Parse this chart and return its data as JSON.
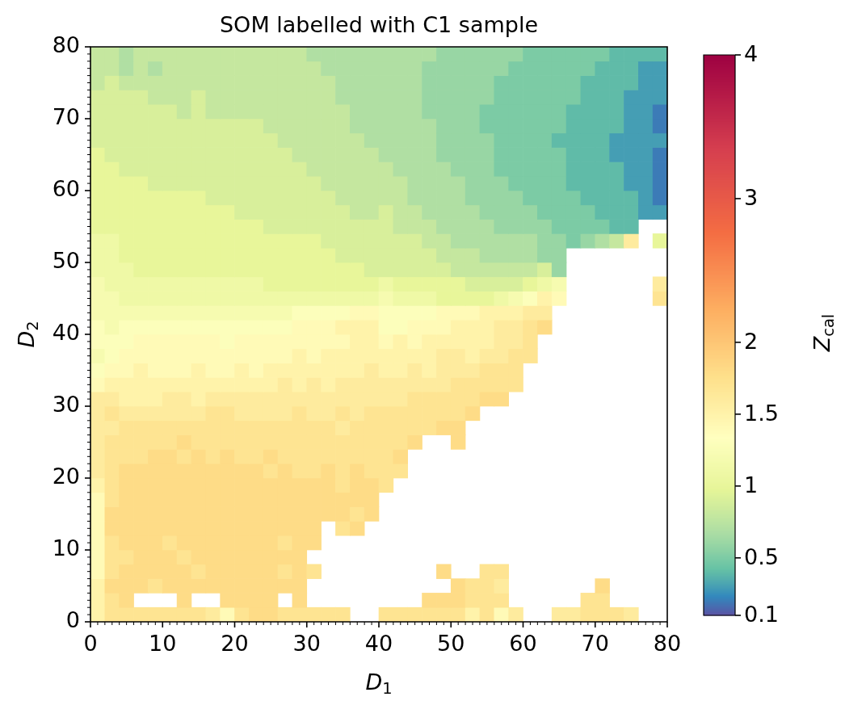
{
  "chart_data": {
    "type": "heatmap",
    "title": "SOM labelled with C1 sample",
    "xlabel": "D$_{1}$",
    "ylabel": "D$_{2}$",
    "clabel": "Z$_{cal}$",
    "xlim": [
      0,
      80
    ],
    "ylim": [
      0,
      80
    ],
    "xticks": [
      0,
      {
        "value": 1,
        "label": null
      },
      {
        "value": 2,
        "label": null
      },
      {
        "value": 3,
        "label": null
      },
      {
        "value": 4,
        "label": null
      },
      {
        "value": 5,
        "label": null
      },
      {
        "value": 6,
        "label": null
      },
      {
        "value": 7,
        "label": null
      },
      {
        "value": 8,
        "label": null
      },
      {
        "value": 9,
        "label": null
      },
      10,
      {
        "value": 11,
        "label": null
      },
      {
        "value": 12,
        "label": null
      },
      {
        "value": 13,
        "label": null
      },
      {
        "value": 14,
        "label": null
      },
      {
        "value": 15,
        "label": null
      },
      {
        "value": 16,
        "label": null
      },
      {
        "value": 17,
        "label": null
      },
      {
        "value": 18,
        "label": null
      },
      {
        "value": 19,
        "label": null
      },
      20,
      {
        "value": 21,
        "label": null
      },
      {
        "value": 22,
        "label": null
      },
      {
        "value": 23,
        "label": null
      },
      {
        "value": 24,
        "label": null
      },
      {
        "value": 25,
        "label": null
      },
      {
        "value": 26,
        "label": null
      },
      {
        "value": 27,
        "label": null
      },
      {
        "value": 28,
        "label": null
      },
      {
        "value": 29,
        "label": null
      },
      30,
      {
        "value": 31,
        "label": null
      },
      {
        "value": 32,
        "label": null
      },
      {
        "value": 33,
        "label": null
      },
      {
        "value": 34,
        "label": null
      },
      {
        "value": 35,
        "label": null
      },
      {
        "value": 36,
        "label": null
      },
      {
        "value": 37,
        "label": null
      },
      {
        "value": 38,
        "label": null
      },
      {
        "value": 39,
        "label": null
      },
      40,
      {
        "value": 41,
        "label": null
      },
      {
        "value": 42,
        "label": null
      },
      {
        "value": 43,
        "label": null
      },
      {
        "value": 44,
        "label": null
      },
      {
        "value": 45,
        "label": null
      },
      {
        "value": 46,
        "label": null
      },
      {
        "value": 47,
        "label": null
      },
      {
        "value": 48,
        "label": null
      },
      {
        "value": 49,
        "label": null
      },
      50,
      {
        "value": 51,
        "label": null
      },
      {
        "value": 52,
        "label": null
      },
      {
        "value": 53,
        "label": null
      },
      {
        "value": 54,
        "label": null
      },
      {
        "value": 55,
        "label": null
      },
      {
        "value": 56,
        "label": null
      },
      {
        "value": 57,
        "label": null
      },
      {
        "value": 58,
        "label": null
      },
      {
        "value": 59,
        "label": null
      },
      60,
      {
        "value": 61,
        "label": null
      },
      {
        "value": 62,
        "label": null
      },
      {
        "value": 63,
        "label": null
      },
      {
        "value": 64,
        "label": null
      },
      {
        "value": 65,
        "label": null
      },
      {
        "value": 66,
        "label": null
      },
      {
        "value": 67,
        "label": null
      },
      {
        "value": 68,
        "label": null
      },
      {
        "value": 69,
        "label": null
      },
      70,
      {
        "value": 71,
        "label": null
      },
      {
        "value": 72,
        "label": null
      },
      {
        "value": 73,
        "label": null
      },
      {
        "value": 74,
        "label": null
      },
      {
        "value": 75,
        "label": null
      },
      {
        "value": 76,
        "label": null
      },
      {
        "value": 77,
        "label": null
      },
      {
        "value": 78,
        "label": null
      },
      {
        "value": 79,
        "label": null
      },
      80
    ],
    "yticks": [
      0,
      {
        "value": 1,
        "label": null
      },
      {
        "value": 2,
        "label": null
      },
      {
        "value": 3,
        "label": null
      },
      {
        "value": 4,
        "label": null
      },
      {
        "value": 5,
        "label": null
      },
      {
        "value": 6,
        "label": null
      },
      {
        "value": 7,
        "label": null
      },
      {
        "value": 8,
        "label": null
      },
      {
        "value": 9,
        "label": null
      },
      10,
      {
        "value": 11,
        "label": null
      },
      {
        "value": 12,
        "label": null
      },
      {
        "value": 13,
        "label": null
      },
      {
        "value": 14,
        "label": null
      },
      {
        "value": 15,
        "label": null
      },
      {
        "value": 16,
        "label": null
      },
      {
        "value": 17,
        "label": null
      },
      {
        "value": 18,
        "label": null
      },
      {
        "value": 19,
        "label": null
      },
      20,
      {
        "value": 21,
        "label": null
      },
      {
        "value": 22,
        "label": null
      },
      {
        "value": 23,
        "label": null
      },
      {
        "value": 24,
        "label": null
      },
      {
        "value": 25,
        "label": null
      },
      {
        "value": 26,
        "label": null
      },
      {
        "value": 27,
        "label": null
      },
      {
        "value": 28,
        "label": null
      },
      {
        "value": 29,
        "label": null
      },
      30,
      {
        "value": 31,
        "label": null
      },
      {
        "value": 32,
        "label": null
      },
      {
        "value": 33,
        "label": null
      },
      {
        "value": 34,
        "label": null
      },
      {
        "value": 35,
        "label": null
      },
      {
        "value": 36,
        "label": null
      },
      {
        "value": 37,
        "label": null
      },
      {
        "value": 38,
        "label": null
      },
      {
        "value": 39,
        "label": null
      },
      40,
      {
        "value": 41,
        "label": null
      },
      {
        "value": 42,
        "label": null
      },
      {
        "value": 43,
        "label": null
      },
      {
        "value": 44,
        "label": null
      },
      {
        "value": 45,
        "label": null
      },
      {
        "value": 46,
        "label": null
      },
      {
        "value": 47,
        "label": null
      },
      {
        "value": 48,
        "label": null
      },
      {
        "value": 49,
        "label": null
      },
      50,
      {
        "value": 51,
        "label": null
      },
      {
        "value": 52,
        "label": null
      },
      {
        "value": 53,
        "label": null
      },
      {
        "value": 54,
        "label": null
      },
      {
        "value": 55,
        "label": null
      },
      {
        "value": 56,
        "label": null
      },
      {
        "value": 57,
        "label": null
      },
      {
        "value": 58,
        "label": null
      },
      {
        "value": 59,
        "label": null
      },
      60,
      {
        "value": 61,
        "label": null
      },
      {
        "value": 62,
        "label": null
      },
      {
        "value": 63,
        "label": null
      },
      {
        "value": 64,
        "label": null
      },
      {
        "value": 65,
        "label": null
      },
      {
        "value": 66,
        "label": null
      },
      {
        "value": 67,
        "label": null
      },
      {
        "value": 68,
        "label": null
      },
      {
        "value": 69,
        "label": null
      },
      70,
      {
        "value": 71,
        "label": null
      },
      {
        "value": 72,
        "label": null
      },
      {
        "value": 73,
        "label": null
      },
      {
        "value": 74,
        "label": null
      },
      {
        "value": 75,
        "label": null
      },
      {
        "value": 76,
        "label": null
      },
      {
        "value": 77,
        "label": null
      },
      {
        "value": 78,
        "label": null
      },
      {
        "value": 79,
        "label": null
      },
      80
    ],
    "clim": [
      0.1,
      4
    ],
    "cticks": [
      0.1,
      0.5,
      1,
      1.5,
      2,
      3,
      4
    ],
    "cells": [
      [
        0.8,
        0.8,
        0.7,
        0.8,
        0.8,
        0.8,
        0.8,
        0.8,
        0.8,
        0.8,
        0.8,
        0.8,
        0.8,
        0.8,
        0.8,
        0.7,
        0.7,
        0.7,
        0.7,
        0.7,
        0.7,
        0.7,
        0.7,
        0.7,
        0.6,
        0.6,
        0.6,
        0.6,
        0.6,
        0.6,
        0.5,
        0.5,
        0.5,
        0.5,
        0.5,
        0.5,
        0.4,
        0.4,
        0.4,
        0.4
      ],
      [
        0.8,
        0.8,
        0.7,
        0.8,
        0.7,
        0.8,
        0.8,
        0.8,
        0.8,
        0.8,
        0.8,
        0.8,
        0.8,
        0.8,
        0.8,
        0.8,
        0.7,
        0.7,
        0.7,
        0.7,
        0.7,
        0.7,
        0.7,
        0.6,
        0.6,
        0.6,
        0.6,
        0.6,
        0.6,
        0.5,
        0.5,
        0.5,
        0.5,
        0.5,
        0.5,
        0.4,
        0.4,
        0.4,
        0.3,
        0.3
      ],
      [
        0.8,
        0.9,
        0.8,
        0.8,
        0.8,
        0.8,
        0.8,
        0.8,
        0.8,
        0.8,
        0.8,
        0.8,
        0.8,
        0.8,
        0.8,
        0.8,
        0.8,
        0.7,
        0.7,
        0.7,
        0.7,
        0.7,
        0.7,
        0.6,
        0.6,
        0.6,
        0.6,
        0.6,
        0.5,
        0.5,
        0.5,
        0.5,
        0.5,
        0.5,
        0.4,
        0.4,
        0.4,
        0.4,
        0.3,
        0.3
      ],
      [
        0.9,
        0.9,
        0.9,
        0.9,
        0.8,
        0.8,
        0.8,
        0.9,
        0.8,
        0.8,
        0.8,
        0.8,
        0.8,
        0.8,
        0.8,
        0.8,
        0.8,
        0.7,
        0.7,
        0.7,
        0.7,
        0.7,
        0.7,
        0.6,
        0.6,
        0.6,
        0.6,
        0.6,
        0.5,
        0.5,
        0.5,
        0.5,
        0.5,
        0.5,
        0.4,
        0.4,
        0.4,
        0.3,
        0.3,
        0.3
      ],
      [
        0.9,
        0.9,
        0.9,
        0.9,
        0.9,
        0.9,
        0.8,
        0.9,
        0.8,
        0.8,
        0.8,
        0.8,
        0.8,
        0.8,
        0.8,
        0.8,
        0.8,
        0.8,
        0.7,
        0.7,
        0.7,
        0.7,
        0.7,
        0.6,
        0.6,
        0.6,
        0.6,
        0.5,
        0.5,
        0.5,
        0.5,
        0.5,
        0.5,
        0.4,
        0.4,
        0.4,
        0.4,
        0.3,
        0.3,
        0.2
      ],
      [
        0.9,
        0.9,
        0.9,
        0.9,
        0.9,
        0.9,
        0.9,
        0.9,
        0.9,
        0.9,
        0.9,
        0.9,
        0.8,
        0.8,
        0.8,
        0.8,
        0.8,
        0.8,
        0.7,
        0.7,
        0.7,
        0.7,
        0.7,
        0.7,
        0.6,
        0.6,
        0.6,
        0.5,
        0.5,
        0.5,
        0.5,
        0.5,
        0.5,
        0.4,
        0.4,
        0.4,
        0.4,
        0.3,
        0.3,
        0.2
      ],
      [
        0.9,
        0.9,
        0.9,
        0.9,
        0.9,
        0.9,
        0.9,
        0.9,
        0.9,
        0.9,
        0.9,
        0.9,
        0.9,
        0.8,
        0.8,
        0.8,
        0.8,
        0.8,
        0.8,
        0.7,
        0.7,
        0.7,
        0.7,
        0.7,
        0.6,
        0.6,
        0.6,
        0.6,
        0.5,
        0.5,
        0.5,
        0.5,
        0.4,
        0.4,
        0.4,
        0.4,
        0.3,
        0.3,
        0.3,
        0.3
      ],
      [
        1.0,
        0.9,
        0.9,
        0.9,
        0.9,
        0.9,
        0.9,
        0.9,
        0.9,
        0.9,
        0.9,
        0.9,
        0.9,
        0.9,
        0.8,
        0.8,
        0.8,
        0.8,
        0.8,
        0.8,
        0.7,
        0.7,
        0.7,
        0.7,
        0.6,
        0.6,
        0.6,
        0.6,
        0.5,
        0.5,
        0.5,
        0.5,
        0.5,
        0.4,
        0.4,
        0.4,
        0.3,
        0.3,
        0.3,
        0.2
      ],
      [
        1.0,
        1.0,
        0.9,
        0.9,
        0.9,
        0.9,
        0.9,
        0.9,
        0.9,
        0.9,
        0.9,
        0.9,
        0.9,
        0.9,
        0.9,
        0.8,
        0.8,
        0.8,
        0.8,
        0.8,
        0.8,
        0.7,
        0.7,
        0.7,
        0.7,
        0.6,
        0.6,
        0.6,
        0.5,
        0.5,
        0.5,
        0.5,
        0.5,
        0.4,
        0.4,
        0.4,
        0.4,
        0.3,
        0.3,
        0.2
      ],
      [
        1.0,
        1.0,
        1.0,
        1.0,
        0.9,
        0.9,
        0.9,
        0.9,
        0.9,
        0.9,
        0.9,
        0.9,
        0.9,
        0.9,
        0.9,
        0.9,
        0.8,
        0.8,
        0.8,
        0.8,
        0.8,
        0.8,
        0.7,
        0.7,
        0.7,
        0.7,
        0.6,
        0.6,
        0.6,
        0.5,
        0.5,
        0.5,
        0.5,
        0.4,
        0.4,
        0.4,
        0.4,
        0.3,
        0.3,
        0.2
      ],
      [
        1.0,
        1.0,
        1.0,
        1.0,
        1.0,
        1.0,
        1.0,
        1.0,
        0.9,
        0.9,
        0.9,
        0.9,
        0.9,
        0.9,
        0.9,
        0.9,
        0.9,
        0.8,
        0.8,
        0.8,
        0.8,
        0.8,
        0.7,
        0.7,
        0.7,
        0.7,
        0.6,
        0.6,
        0.6,
        0.6,
        0.5,
        0.5,
        0.5,
        0.5,
        0.4,
        0.4,
        0.4,
        0.4,
        0.3,
        0.2
      ],
      [
        1.0,
        1.0,
        1.0,
        1.0,
        1.0,
        1.0,
        1.0,
        1.0,
        1.0,
        1.0,
        0.9,
        0.9,
        0.9,
        0.9,
        0.9,
        0.9,
        0.9,
        0.9,
        0.8,
        0.8,
        0.9,
        0.8,
        0.8,
        0.7,
        0.7,
        0.7,
        0.7,
        0.6,
        0.6,
        0.6,
        0.6,
        0.5,
        0.5,
        0.5,
        0.5,
        0.4,
        0.4,
        0.4,
        0.3,
        0.3
      ],
      [
        1.0,
        1.0,
        1.0,
        1.0,
        1.0,
        1.0,
        1.0,
        1.0,
        1.0,
        1.0,
        1.0,
        1.0,
        0.9,
        0.9,
        0.9,
        0.9,
        0.9,
        0.9,
        0.9,
        0.9,
        0.9,
        0.8,
        0.8,
        0.8,
        0.7,
        0.7,
        0.7,
        0.7,
        0.6,
        0.6,
        0.6,
        0.6,
        0.5,
        0.5,
        0.5,
        0.5,
        0.4,
        0.4,
        null,
        null
      ],
      [
        1.1,
        1.1,
        1.0,
        1.0,
        1.0,
        1.0,
        1.0,
        1.0,
        1.0,
        1.0,
        1.0,
        1.0,
        1.0,
        1.0,
        1.0,
        1.0,
        0.9,
        0.9,
        0.9,
        0.9,
        0.9,
        0.9,
        0.9,
        0.8,
        0.8,
        0.7,
        0.7,
        0.7,
        0.7,
        0.7,
        0.7,
        0.6,
        0.6,
        0.5,
        0.6,
        0.7,
        0.8,
        1.6,
        null,
        1.0
      ],
      [
        1.1,
        1.1,
        1.0,
        1.0,
        1.0,
        1.0,
        1.0,
        1.0,
        1.0,
        1.0,
        1.0,
        1.0,
        1.0,
        1.0,
        1.0,
        1.0,
        1.0,
        0.9,
        0.9,
        0.9,
        0.9,
        0.9,
        0.9,
        0.9,
        0.8,
        0.8,
        0.8,
        0.7,
        0.7,
        0.7,
        0.7,
        0.6,
        0.6,
        null,
        null,
        null,
        null,
        null,
        null,
        null
      ],
      [
        1.1,
        1.1,
        1.1,
        1.0,
        1.0,
        1.0,
        1.0,
        1.0,
        1.0,
        1.0,
        1.0,
        1.0,
        1.0,
        1.0,
        1.0,
        1.0,
        1.0,
        1.0,
        1.0,
        0.9,
        0.9,
        0.9,
        0.9,
        0.9,
        0.9,
        0.8,
        0.8,
        0.8,
        0.8,
        0.8,
        0.8,
        0.9,
        0.6,
        null,
        null,
        null,
        null,
        null,
        null,
        null
      ],
      [
        1.2,
        1.1,
        1.1,
        1.1,
        1.1,
        1.1,
        1.1,
        1.1,
        1.1,
        1.1,
        1.1,
        1.1,
        1.0,
        1.0,
        1.0,
        1.0,
        1.0,
        1.0,
        1.0,
        1.0,
        1.1,
        1.0,
        1.0,
        1.0,
        1.0,
        1.0,
        0.9,
        0.9,
        0.9,
        0.9,
        1.0,
        1.1,
        1.2,
        null,
        null,
        null,
        null,
        null,
        null,
        1.6
      ],
      [
        1.2,
        1.2,
        1.1,
        1.1,
        1.1,
        1.1,
        1.1,
        1.1,
        1.1,
        1.1,
        1.1,
        1.1,
        1.1,
        1.1,
        1.1,
        1.1,
        1.1,
        1.1,
        1.1,
        1.1,
        1.2,
        1.1,
        1.1,
        1.1,
        1.0,
        1.0,
        1.0,
        1.0,
        1.1,
        1.2,
        1.3,
        1.5,
        1.4,
        null,
        null,
        null,
        null,
        null,
        null,
        1.7
      ],
      [
        1.2,
        1.2,
        1.2,
        1.2,
        1.2,
        1.2,
        1.2,
        1.2,
        1.2,
        1.2,
        1.2,
        1.2,
        1.2,
        1.2,
        1.3,
        1.3,
        1.3,
        1.3,
        1.4,
        1.4,
        1.3,
        1.3,
        1.3,
        1.3,
        1.4,
        1.4,
        1.4,
        1.5,
        1.5,
        1.5,
        1.6,
        1.6,
        null,
        null,
        null,
        null,
        null,
        null,
        null,
        null
      ],
      [
        1.3,
        1.2,
        1.3,
        1.3,
        1.3,
        1.3,
        1.3,
        1.3,
        1.3,
        1.3,
        1.3,
        1.3,
        1.3,
        1.3,
        1.4,
        1.4,
        1.4,
        1.5,
        1.5,
        1.5,
        1.3,
        1.3,
        1.4,
        1.4,
        1.4,
        1.5,
        1.5,
        1.5,
        1.6,
        1.6,
        1.7,
        1.8,
        null,
        null,
        null,
        null,
        null,
        null,
        null,
        null
      ],
      [
        1.3,
        1.3,
        1.3,
        1.4,
        1.4,
        1.4,
        1.4,
        1.4,
        1.4,
        1.3,
        1.4,
        1.4,
        1.4,
        1.4,
        1.4,
        1.4,
        1.4,
        1.4,
        1.5,
        1.5,
        1.4,
        1.5,
        1.4,
        1.5,
        1.5,
        1.5,
        1.5,
        1.5,
        1.6,
        1.6,
        1.7,
        null,
        null,
        null,
        null,
        null,
        null,
        null,
        null,
        null
      ],
      [
        1.2,
        1.3,
        1.4,
        1.4,
        1.4,
        1.4,
        1.4,
        1.4,
        1.4,
        1.4,
        1.4,
        1.4,
        1.4,
        1.4,
        1.5,
        1.4,
        1.5,
        1.5,
        1.5,
        1.5,
        1.5,
        1.5,
        1.5,
        1.5,
        1.6,
        1.6,
        1.5,
        1.6,
        1.6,
        1.7,
        1.7,
        null,
        null,
        null,
        null,
        null,
        null,
        null,
        null,
        null
      ],
      [
        1.3,
        1.4,
        1.4,
        1.5,
        1.4,
        1.4,
        1.4,
        1.5,
        1.4,
        1.4,
        1.5,
        1.4,
        1.5,
        1.5,
        1.5,
        1.5,
        1.5,
        1.5,
        1.5,
        1.6,
        1.5,
        1.5,
        1.6,
        1.5,
        1.6,
        1.6,
        1.6,
        1.7,
        1.7,
        1.7,
        null,
        null,
        null,
        null,
        null,
        null,
        null,
        null,
        null,
        null
      ],
      [
        1.4,
        1.5,
        1.5,
        1.5,
        1.5,
        1.5,
        1.5,
        1.5,
        1.5,
        1.5,
        1.5,
        1.5,
        1.5,
        1.6,
        1.5,
        1.6,
        1.5,
        1.6,
        1.6,
        1.6,
        1.6,
        1.6,
        1.6,
        1.6,
        1.6,
        1.7,
        1.7,
        1.7,
        1.7,
        1.7,
        null,
        null,
        null,
        null,
        null,
        null,
        null,
        null,
        null,
        null
      ],
      [
        1.6,
        1.6,
        1.5,
        1.5,
        1.5,
        1.6,
        1.6,
        1.5,
        1.6,
        1.6,
        1.6,
        1.6,
        1.6,
        1.6,
        1.6,
        1.6,
        1.6,
        1.6,
        1.6,
        1.6,
        1.6,
        1.6,
        1.7,
        1.7,
        1.7,
        1.7,
        1.7,
        1.8,
        1.8,
        null,
        null,
        null,
        null,
        null,
        null,
        null,
        null,
        null,
        null,
        null
      ],
      [
        1.6,
        1.7,
        1.6,
        1.6,
        1.6,
        1.6,
        1.6,
        1.6,
        1.7,
        1.7,
        1.6,
        1.6,
        1.6,
        1.6,
        1.7,
        1.6,
        1.6,
        1.7,
        1.6,
        1.7,
        1.7,
        1.7,
        1.7,
        1.7,
        1.7,
        1.7,
        1.8,
        null,
        null,
        null,
        null,
        null,
        null,
        null,
        null,
        null,
        null,
        null,
        null,
        null
      ],
      [
        1.6,
        1.6,
        1.7,
        1.7,
        1.7,
        1.7,
        1.7,
        1.7,
        1.7,
        1.7,
        1.7,
        1.7,
        1.7,
        1.7,
        1.7,
        1.7,
        1.7,
        1.6,
        1.7,
        1.7,
        1.7,
        1.7,
        1.7,
        1.7,
        1.8,
        1.8,
        null,
        null,
        null,
        null,
        null,
        null,
        null,
        null,
        null,
        null,
        null,
        null,
        null,
        null
      ],
      [
        1.6,
        1.7,
        1.7,
        1.7,
        1.7,
        1.7,
        1.8,
        1.7,
        1.7,
        1.7,
        1.7,
        1.7,
        1.7,
        1.7,
        1.7,
        1.7,
        1.7,
        1.7,
        1.7,
        1.7,
        1.7,
        1.7,
        1.8,
        null,
        null,
        1.8,
        null,
        null,
        null,
        null,
        null,
        null,
        null,
        null,
        null,
        null,
        null,
        null,
        null,
        null
      ],
      [
        1.6,
        1.7,
        1.7,
        1.7,
        1.8,
        1.8,
        1.7,
        1.8,
        1.7,
        1.8,
        1.7,
        1.7,
        1.8,
        1.7,
        1.7,
        1.7,
        1.7,
        1.7,
        1.7,
        1.7,
        1.7,
        1.8,
        null,
        null,
        null,
        null,
        null,
        null,
        null,
        null,
        null,
        null,
        null,
        null,
        null,
        null,
        null,
        null,
        null,
        null
      ],
      [
        1.6,
        1.7,
        1.8,
        1.8,
        1.8,
        1.8,
        1.8,
        1.8,
        1.8,
        1.8,
        1.8,
        1.8,
        1.7,
        1.8,
        1.7,
        1.7,
        1.8,
        1.7,
        1.8,
        1.7,
        1.7,
        1.7,
        null,
        null,
        null,
        null,
        null,
        null,
        null,
        null,
        null,
        null,
        null,
        null,
        null,
        null,
        null,
        null,
        null,
        null
      ],
      [
        1.5,
        1.7,
        1.8,
        1.8,
        1.8,
        1.8,
        1.8,
        1.8,
        1.8,
        1.8,
        1.8,
        1.8,
        1.8,
        1.8,
        1.8,
        1.8,
        1.8,
        1.7,
        1.8,
        1.8,
        1.7,
        null,
        null,
        null,
        null,
        null,
        null,
        null,
        null,
        null,
        null,
        null,
        null,
        null,
        null,
        null,
        null,
        null,
        null,
        null
      ],
      [
        1.4,
        1.7,
        1.8,
        1.8,
        1.8,
        1.8,
        1.8,
        1.8,
        1.8,
        1.8,
        1.8,
        1.8,
        1.8,
        1.8,
        1.8,
        1.8,
        1.8,
        1.8,
        1.8,
        1.8,
        null,
        null,
        null,
        null,
        null,
        null,
        null,
        null,
        null,
        null,
        null,
        null,
        null,
        null,
        null,
        null,
        null,
        null,
        null,
        null
      ],
      [
        1.4,
        1.8,
        1.8,
        1.8,
        1.8,
        1.8,
        1.8,
        1.8,
        1.8,
        1.8,
        1.8,
        1.8,
        1.8,
        1.8,
        1.8,
        1.8,
        1.8,
        1.8,
        1.7,
        1.8,
        null,
        null,
        null,
        null,
        null,
        null,
        null,
        null,
        null,
        null,
        null,
        null,
        null,
        null,
        null,
        null,
        null,
        null,
        null,
        null
      ],
      [
        1.4,
        1.8,
        1.8,
        1.8,
        1.8,
        1.8,
        1.8,
        1.8,
        1.8,
        1.8,
        1.8,
        1.8,
        1.8,
        1.8,
        1.8,
        1.8,
        null,
        1.7,
        1.8,
        null,
        null,
        null,
        null,
        null,
        null,
        null,
        null,
        null,
        null,
        null,
        null,
        null,
        null,
        null,
        null,
        null,
        null,
        null,
        null,
        null
      ],
      [
        1.4,
        1.7,
        1.8,
        1.8,
        1.8,
        1.7,
        1.8,
        1.8,
        1.8,
        1.8,
        1.8,
        1.8,
        1.8,
        1.7,
        1.8,
        1.8,
        null,
        null,
        null,
        null,
        null,
        null,
        null,
        null,
        null,
        null,
        null,
        null,
        null,
        null,
        null,
        null,
        null,
        null,
        null,
        null,
        null,
        null,
        null,
        null
      ],
      [
        1.4,
        1.7,
        1.7,
        1.8,
        1.8,
        1.8,
        1.7,
        1.8,
        1.8,
        1.8,
        1.8,
        1.8,
        1.8,
        1.8,
        1.8,
        null,
        null,
        null,
        null,
        null,
        null,
        null,
        null,
        null,
        null,
        null,
        null,
        null,
        null,
        null,
        null,
        null,
        null,
        null,
        null,
        null,
        null,
        null,
        null,
        null
      ],
      [
        1.4,
        1.7,
        1.8,
        1.8,
        1.8,
        1.8,
        1.8,
        1.7,
        1.8,
        1.8,
        1.8,
        1.8,
        1.8,
        1.7,
        1.8,
        1.7,
        null,
        null,
        null,
        null,
        null,
        null,
        null,
        null,
        1.8,
        null,
        null,
        1.7,
        1.7,
        null,
        null,
        null,
        null,
        null,
        null,
        null,
        null,
        null,
        null,
        null
      ],
      [
        1.5,
        1.8,
        1.8,
        1.8,
        1.7,
        1.8,
        1.8,
        1.8,
        1.8,
        1.8,
        1.8,
        1.8,
        1.8,
        1.8,
        1.8,
        null,
        null,
        null,
        null,
        null,
        null,
        null,
        null,
        null,
        null,
        1.8,
        1.7,
        1.7,
        1.6,
        null,
        null,
        null,
        null,
        null,
        null,
        1.8,
        null,
        null,
        null,
        null
      ],
      [
        1.5,
        1.7,
        1.8,
        null,
        null,
        null,
        1.8,
        null,
        null,
        1.8,
        1.8,
        1.8,
        1.8,
        null,
        1.8,
        null,
        null,
        null,
        null,
        null,
        null,
        null,
        null,
        1.8,
        1.8,
        1.8,
        1.7,
        1.7,
        1.7,
        null,
        null,
        null,
        null,
        null,
        1.7,
        1.7,
        null,
        null,
        null,
        null
      ],
      [
        1.5,
        1.7,
        1.7,
        1.7,
        1.7,
        1.7,
        1.7,
        1.7,
        1.6,
        1.4,
        1.7,
        1.8,
        1.8,
        1.7,
        1.7,
        1.7,
        1.7,
        1.7,
        null,
        null,
        1.7,
        1.7,
        1.7,
        1.7,
        1.7,
        1.7,
        1.5,
        1.7,
        1.4,
        1.6,
        null,
        null,
        1.6,
        1.6,
        1.7,
        1.7,
        1.7,
        1.6,
        null,
        null
      ]
    ]
  }
}
